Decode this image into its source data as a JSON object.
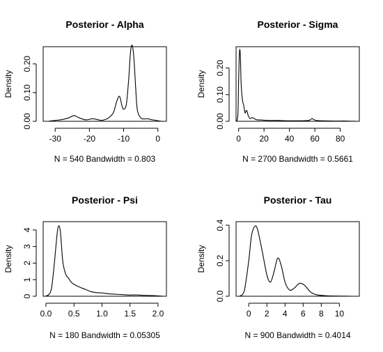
{
  "chart_data": [
    {
      "type": "line",
      "title": "Posterior - Alpha",
      "xlabel": "N = 540   Bandwidth = 0.803",
      "ylabel": "Density",
      "xlim": [
        -33.5,
        2.5
      ],
      "ylim": [
        0,
        0.26
      ],
      "xticks": [
        -30,
        -20,
        -10,
        0
      ],
      "yticks": [
        0.0,
        0.1,
        0.2
      ],
      "ytick_labels": [
        "0.00",
        "0.10",
        "0.20"
      ],
      "grid": false,
      "series": [
        {
          "x": [
            -32,
            -30,
            -28,
            -26,
            -24.5,
            -23,
            -21,
            -19,
            -17,
            -16,
            -14.5,
            -13,
            -12,
            -11.2,
            -10.5,
            -10,
            -9.2,
            -8.5,
            -8,
            -7.5,
            -7,
            -6.5,
            -6,
            -5,
            -4,
            -3,
            -2,
            -1,
            0,
            1
          ],
          "y": [
            0.0,
            0.003,
            0.006,
            0.012,
            0.02,
            0.012,
            0.005,
            0.009,
            0.004,
            0.004,
            0.011,
            0.03,
            0.07,
            0.087,
            0.055,
            0.042,
            0.06,
            0.15,
            0.24,
            0.265,
            0.22,
            0.12,
            0.04,
            0.012,
            0.008,
            0.009,
            0.006,
            0.004,
            0.002,
            0.0
          ]
        }
      ]
    },
    {
      "type": "line",
      "title": "Posterior - Sigma",
      "xlabel": "N = 2700   Bandwidth = 0.5661",
      "ylabel": "Density",
      "xlim": [
        -2,
        95
      ],
      "ylim": [
        0,
        0.28
      ],
      "xticks": [
        0,
        20,
        40,
        60,
        80
      ],
      "yticks": [
        0.0,
        0.1,
        0.2
      ],
      "ytick_labels": [
        "0.00",
        "0.10",
        "0.20"
      ],
      "grid": false,
      "series": [
        {
          "x": [
            -1.5,
            -0.5,
            0,
            0.5,
            1,
            1.5,
            2,
            3,
            4,
            5,
            5.8,
            6.5,
            7.5,
            9,
            10.5,
            12,
            14,
            17,
            20,
            25,
            30,
            40,
            50,
            55,
            57,
            58,
            59,
            61,
            65,
            75,
            85,
            93
          ],
          "y": [
            0.0,
            0.03,
            0.15,
            0.24,
            0.27,
            0.23,
            0.14,
            0.08,
            0.06,
            0.032,
            0.038,
            0.04,
            0.022,
            0.01,
            0.014,
            0.011,
            0.006,
            0.005,
            0.004,
            0.003,
            0.003,
            0.002,
            0.002,
            0.003,
            0.008,
            0.01,
            0.007,
            0.003,
            0.002,
            0.001,
            0.001,
            0.0
          ]
        }
      ]
    },
    {
      "type": "line",
      "title": "Posterior - Psi",
      "xlabel": "N = 180   Bandwidth = 0.05305",
      "ylabel": "Density",
      "xlim": [
        -0.05,
        2.15
      ],
      "ylim": [
        0,
        4.5
      ],
      "xticks": [
        0.0,
        0.5,
        1.0,
        1.5,
        2.0
      ],
      "xtick_labels": [
        "0.0",
        "0.5",
        "1.0",
        "1.5",
        "2.0"
      ],
      "yticks": [
        0,
        1,
        2,
        3,
        4
      ],
      "ytick_labels": [
        "0",
        "1",
        "2",
        "3",
        "4"
      ],
      "grid": false,
      "series": [
        {
          "x": [
            0.0,
            0.05,
            0.1,
            0.15,
            0.2,
            0.23,
            0.26,
            0.3,
            0.35,
            0.4,
            0.45,
            0.5,
            0.6,
            0.7,
            0.8,
            0.9,
            1.0,
            1.1,
            1.2,
            1.3,
            1.4,
            1.5,
            1.6,
            1.7,
            1.8,
            1.9,
            2.0,
            2.1
          ],
          "y": [
            0.02,
            0.1,
            0.5,
            2.0,
            3.8,
            4.25,
            3.8,
            2.1,
            1.35,
            1.1,
            0.85,
            0.72,
            0.55,
            0.42,
            0.28,
            0.22,
            0.2,
            0.15,
            0.13,
            0.11,
            0.09,
            0.07,
            0.08,
            0.06,
            0.05,
            0.04,
            0.02,
            0.0
          ]
        }
      ]
    },
    {
      "type": "line",
      "title": "Posterior - Tau",
      "xlabel": "N = 900   Bandwidth = 0.4014",
      "ylabel": "Density",
      "xlim": [
        -1.4,
        12.2
      ],
      "ylim": [
        0,
        0.42
      ],
      "xticks": [
        0,
        2,
        4,
        6,
        8,
        10
      ],
      "yticks": [
        0.0,
        0.2,
        0.4
      ],
      "ytick_labels": [
        "0.0",
        "0.2",
        "0.4"
      ],
      "grid": false,
      "series": [
        {
          "x": [
            -1.0,
            -0.5,
            0,
            0.3,
            0.7,
            1.0,
            1.5,
            2.0,
            2.4,
            2.8,
            3.2,
            3.6,
            4.0,
            4.5,
            5.0,
            5.5,
            5.8,
            6.2,
            6.8,
            7.5,
            8.5,
            10,
            11.5
          ],
          "y": [
            0.0,
            0.03,
            0.2,
            0.34,
            0.395,
            0.37,
            0.25,
            0.12,
            0.08,
            0.14,
            0.215,
            0.17,
            0.08,
            0.035,
            0.045,
            0.07,
            0.072,
            0.06,
            0.025,
            0.008,
            0.003,
            0.001,
            0.0
          ]
        }
      ]
    }
  ]
}
